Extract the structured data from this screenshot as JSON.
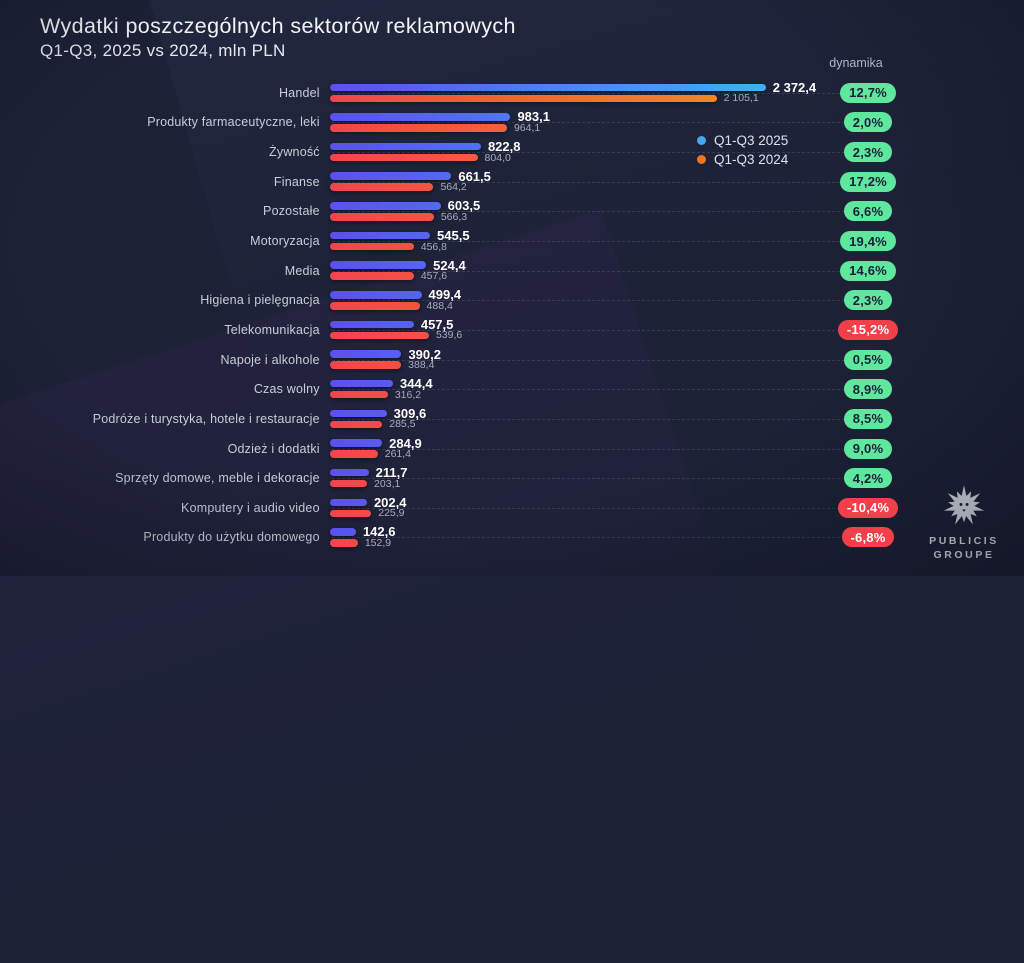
{
  "header": {
    "title": "Wydatki poszczególnych sektorów reklamowych",
    "subtitle": "Q1-Q3, 2025 vs 2024, mln PLN"
  },
  "dynamics_header": "dynamika",
  "legend": {
    "items": [
      {
        "label": "Q1-Q3 2025",
        "color": "#47a6f2"
      },
      {
        "label": "Q1-Q3 2024",
        "color": "#f0731f"
      }
    ]
  },
  "logo": {
    "line1": "PUBLICIS",
    "line2": "GROUPE"
  },
  "chart_data": {
    "type": "bar",
    "orientation": "horizontal",
    "title": "Wydatki poszczególnych sektorów reklamowych",
    "subtitle": "Q1-Q3, 2025 vs 2024, mln PLN",
    "unit": "mln PLN",
    "xlim": [
      0,
      2450
    ],
    "grid": "dashed-horizontal-row-guides",
    "legend_position": "right-inside",
    "categories": [
      "Handel",
      "Produkty farmaceutyczne, leki",
      "Żywność",
      "Finanse",
      "Pozostałe",
      "Motoryzacja",
      "Media",
      "Higiena i pielęgnacja",
      "Telekomunikacja",
      "Napoje i alkohole",
      "Czas wolny",
      "Podróże i turystyka, hotele i restauracje",
      "Odzież i dodatki",
      "Sprzęty domowe, meble i dekoracje",
      "Komputery i audio video",
      "Produkty do użytku domowego"
    ],
    "series": [
      {
        "name": "Q1-Q3 2025",
        "values": [
          2372.4,
          983.1,
          822.8,
          661.5,
          603.5,
          545.5,
          524.4,
          499.4,
          457.5,
          390.2,
          344.4,
          309.6,
          284.9,
          211.7,
          202.4,
          142.6
        ],
        "value_labels": [
          "2 372,4",
          "983,1",
          "822,8",
          "661,5",
          "603,5",
          "545,5",
          "524,4",
          "499,4",
          "457,5",
          "390,2",
          "344,4",
          "309,6",
          "284,9",
          "211,7",
          "202,4",
          "142,6"
        ],
        "gradient": [
          "#5b50ee",
          "#3fb0f5"
        ]
      },
      {
        "name": "Q1-Q3 2024",
        "values": [
          2105.1,
          964.1,
          804.0,
          564.2,
          566.3,
          456.8,
          457.6,
          488.4,
          539.6,
          388.4,
          316.2,
          285.5,
          261.4,
          203.1,
          225.9,
          152.9
        ],
        "value_labels": [
          "2 105,1",
          "964,1",
          "804,0",
          "564,2",
          "566,3",
          "456,8",
          "457,6",
          "488,4",
          "539,6",
          "388,4",
          "316,2",
          "285,5",
          "261,4",
          "203,1",
          "225,9",
          "152,9"
        ],
        "gradient": [
          "#f4434d",
          "#f78d1a"
        ]
      }
    ],
    "dynamics": [
      "12,7%",
      "2,0%",
      "2,3%",
      "17,2%",
      "6,6%",
      "19,4%",
      "14,6%",
      "2,3%",
      "-15,2%",
      "0,5%",
      "8,9%",
      "8,5%",
      "9,0%",
      "4,2%",
      "-10,4%",
      "-6,8%"
    ],
    "colors": {
      "background": "#1c2136",
      "badge_positive": "#5fe79d",
      "badge_negative": "#f2404b",
      "row_label_text": "#c9cdd8",
      "value_2025_text": "#ffffff",
      "value_2024_text": "#a8adbc"
    }
  }
}
